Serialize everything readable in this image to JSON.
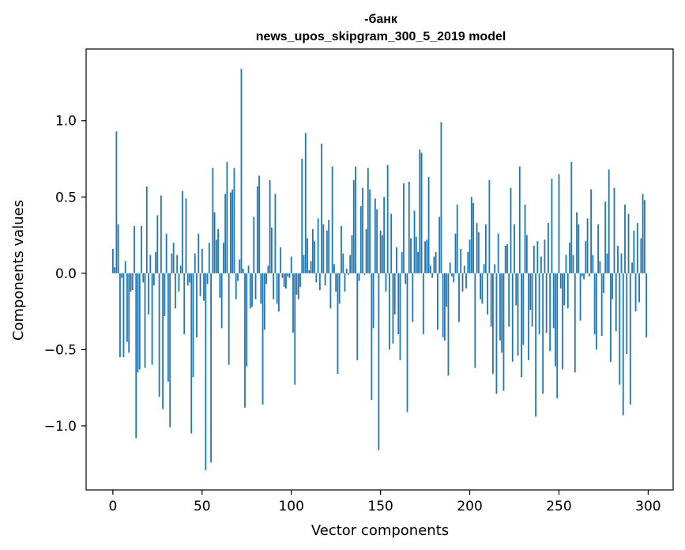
{
  "chart_data": {
    "type": "bar",
    "title_line1": "-банк",
    "title_line2": "news_upos_skipgram_300_5_2019 model",
    "xlabel": "Vector components",
    "ylabel": "Components values",
    "xlim": [
      -15,
      314
    ],
    "ylim": [
      -1.42,
      1.47
    ],
    "xticks": [
      0,
      50,
      100,
      150,
      200,
      250,
      300
    ],
    "xtick_labels": [
      "0",
      "50",
      "100",
      "150",
      "200",
      "250",
      "300"
    ],
    "yticks": [
      -1.0,
      -0.5,
      0.0,
      0.5,
      1.0
    ],
    "ytick_labels": [
      "−1.0",
      "−0.5",
      "0.0",
      "0.5",
      "1.0"
    ],
    "bar_color": "#1f77b4",
    "grid": false,
    "values": [
      0.16,
      0.04,
      0.93,
      0.32,
      -0.55,
      -0.03,
      -0.55,
      0.08,
      -0.45,
      -0.52,
      -0.12,
      -0.11,
      0.31,
      -1.08,
      -0.65,
      -0.63,
      0.31,
      -0.06,
      -0.62,
      0.57,
      -0.27,
      0.12,
      -0.6,
      -0.08,
      0.14,
      0.38,
      -0.81,
      0.51,
      -0.89,
      -0.28,
      0.26,
      -0.71,
      -1.01,
      0.13,
      0.2,
      -0.23,
      0.12,
      -0.12,
      0.05,
      0.54,
      -0.4,
      0.49,
      -0.08,
      -0.06,
      -1.05,
      -0.68,
      0.13,
      -0.42,
      0.26,
      -0.15,
      0.16,
      -0.18,
      -1.29,
      -0.07,
      0.2,
      -1.24,
      0.69,
      0.4,
      0.22,
      0.29,
      -0.16,
      -0.36,
      0.2,
      0.52,
      0.73,
      -0.6,
      0.53,
      0.55,
      0.69,
      -0.17,
      -0.05,
      0.09,
      1.34,
      0.03,
      -0.88,
      -0.61,
      0.05,
      -0.23,
      -0.22,
      0.37,
      -0.17,
      0.57,
      0.64,
      -0.2,
      -0.86,
      -0.37,
      -0.07,
      0.05,
      0.61,
      0.3,
      -0.17,
      0.52,
      -0.2,
      -0.25,
      0.17,
      -0.03,
      -0.09,
      -0.1,
      -0.02,
      -0.03,
      0.11,
      -0.39,
      -0.73,
      -0.14,
      -0.17,
      -0.09,
      0.75,
      0.12,
      0.92,
      0.23,
      0.02,
      0.08,
      0.29,
      0.21,
      -0.06,
      0.36,
      -0.11,
      0.85,
      0.32,
      -0.08,
      0.28,
      0.35,
      -0.23,
      0.7,
      0.06,
      -0.12,
      -0.66,
      -0.2,
      0.31,
      0.13,
      -0.12,
      0.03,
      -0.01,
      0.12,
      0.25,
      0.61,
      0.7,
      -0.57,
      -0.05,
      0.44,
      0.56,
      -0.01,
      0.29,
      0.69,
      0.55,
      -0.83,
      -0.36,
      0.49,
      0.42,
      -1.16,
      0.28,
      0.25,
      0.5,
      -0.12,
      0.71,
      -0.5,
      0.39,
      -0.46,
      -0.27,
      0.17,
      -0.4,
      -0.57,
      0.14,
      0.59,
      -0.07,
      -0.91,
      0.6,
      0.23,
      -0.32,
      0.41,
      0.24,
      0.14,
      0.81,
      0.79,
      -0.4,
      0.21,
      0.22,
      0.63,
      0.05,
      -0.03,
      0.11,
      0.14,
      -0.37,
      0.37,
      0.99,
      -0.42,
      -0.44,
      -0.22,
      -0.67,
      0.07,
      -0.02,
      -0.06,
      0.26,
      0.45,
      -0.32,
      0.16,
      -0.12,
      0.05,
      -0.1,
      0.14,
      0.22,
      0.5,
      0.46,
      -0.62,
      0.33,
      0.27,
      -0.17,
      -0.2,
      0.06,
      0.32,
      -0.27,
      0.61,
      -0.35,
      -0.66,
      0.06,
      -0.79,
      0.26,
      -0.44,
      -0.52,
      -0.77,
      0.18,
      0.19,
      -0.35,
      0.56,
      -0.58,
      0.32,
      -0.21,
      -0.54,
      0.7,
      -0.68,
      -0.47,
      0.45,
      0.25,
      -0.57,
      -0.24,
      -0.35,
      0.18,
      -0.94,
      0.21,
      -0.4,
      0.11,
      -0.79,
      0.22,
      -0.39,
      0.33,
      -0.51,
      0.62,
      -0.36,
      -0.61,
      -0.82,
      0.65,
      -0.1,
      -0.63,
      -0.21,
      0.12,
      -0.23,
      0.2,
      0.73,
      0.12,
      -0.65,
      0.4,
      0.32,
      -0.31,
      -0.02,
      -0.04,
      0.21,
      0.36,
      -0.02,
      0.55,
      0.12,
      -0.4,
      -0.5,
      0.32,
      0.08,
      -0.41,
      -0.13,
      0.47,
      0.13,
      0.68,
      -0.58,
      -0.17,
      0.56,
      -0.38,
      0.18,
      -0.73,
      0.13,
      -0.93,
      0.45,
      -0.53,
      0.39,
      -0.86,
      0.07,
      0.28,
      -0.25,
      0.33,
      -0.19,
      0.23,
      0.52,
      0.48,
      -0.42
    ]
  }
}
